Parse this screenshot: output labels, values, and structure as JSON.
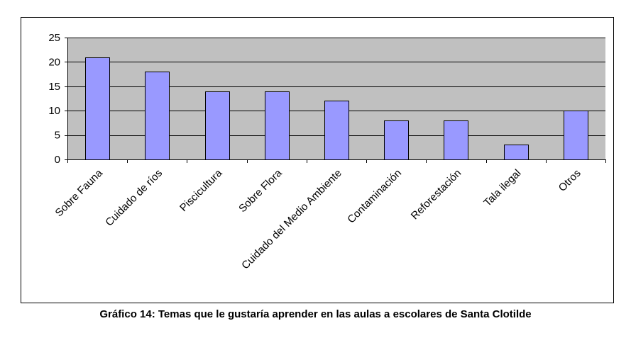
{
  "chart_data": {
    "type": "bar",
    "title": "",
    "xlabel": "",
    "ylabel": "",
    "categories": [
      "Sobre  Fauna",
      "Cuidado de ríos",
      "Piscicultura",
      "Sobre Flora",
      "Cuidado del Medio Ambiente",
      "Contaminación",
      "Reforestación",
      "Tala ilegal",
      "Otros"
    ],
    "values": [
      21,
      18,
      14,
      14,
      12,
      8,
      8,
      3,
      10
    ],
    "ylim": [
      0,
      25
    ],
    "yticks": [
      "0",
      "5",
      "10",
      "15",
      "20",
      "25"
    ],
    "grid": true,
    "legend": "none",
    "colors": {
      "bar_fill": "#9999ff",
      "bar_stroke": "#000000",
      "plot_background": "#c0c0c0",
      "gridline": "#000000"
    }
  },
  "caption": "Gráfico 14: Temas que le gustaría aprender en las aulas a escolares de Santa Clotilde"
}
